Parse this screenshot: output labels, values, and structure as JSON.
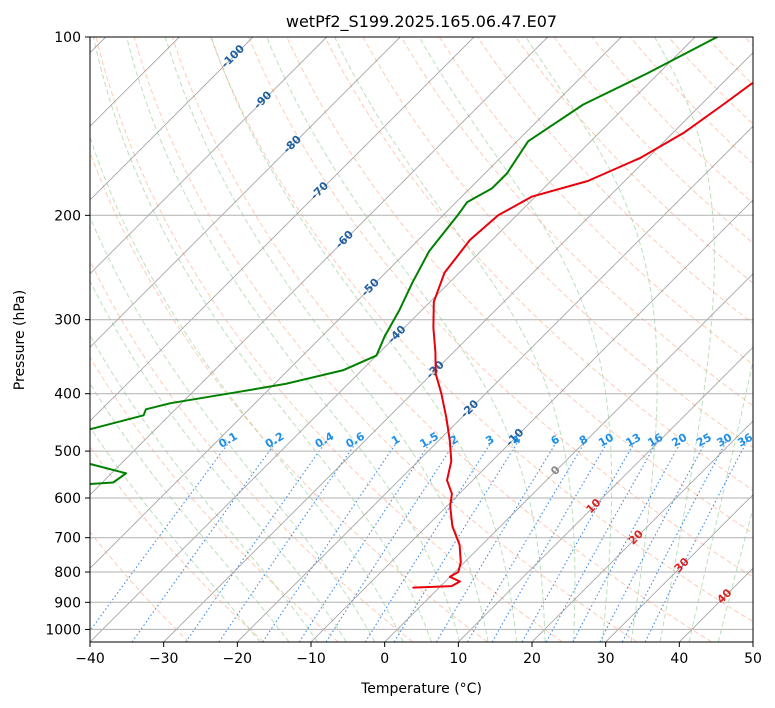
{
  "chart_data": {
    "type": "line",
    "chart_kind": "skew-t log-p diagram",
    "title": "wetPf2_S199.2025.165.06.47.E07",
    "xlabel": "Temperature (°C)",
    "ylabel": "Pressure (hPa)",
    "xlim": [
      -40,
      50
    ],
    "ylim": [
      1050,
      100
    ],
    "y_scale": "log",
    "x_ticks": [
      -40,
      -30,
      -20,
      -10,
      0,
      10,
      20,
      30,
      40,
      50
    ],
    "x_tick_labels": [
      "−40",
      "−30",
      "−20",
      "−10",
      "0",
      "10",
      "20",
      "30",
      "40",
      "50"
    ],
    "y_ticks": [
      100,
      200,
      300,
      400,
      500,
      600,
      700,
      800,
      900,
      1000
    ],
    "y_tick_labels": [
      "100",
      "200",
      "300",
      "400",
      "500",
      "600",
      "700",
      "800",
      "900",
      "1000"
    ],
    "grid": true,
    "colors": {
      "temperature": "#e8000b",
      "dewpoint": "#008000",
      "isotherm": "#888888",
      "dry_adiabat": "#ffa07a",
      "moist_adiabat": "#66bb66",
      "mixing_ratio": "#1f77dd",
      "isotherm_label": "#1f5f9f",
      "mixing_label": "#1f8fe8",
      "moist_label": "#dd2222",
      "grid": "#b0b0b0"
    },
    "series": [
      {
        "role": "temperature",
        "points": [
          [
            -18.5,
            100
          ],
          [
            -22.5,
            110
          ],
          [
            -26.0,
            120
          ],
          [
            -27.0,
            130
          ],
          [
            -28.5,
            145
          ],
          [
            -31.0,
            160
          ],
          [
            -35.0,
            175
          ],
          [
            -40.5,
            186
          ],
          [
            -42.5,
            200
          ],
          [
            -43.0,
            220
          ],
          [
            -42.0,
            250
          ],
          [
            -39.5,
            280
          ],
          [
            -36.0,
            310
          ],
          [
            -32.5,
            340
          ],
          [
            -29.5,
            370
          ],
          [
            -26.0,
            400
          ],
          [
            -22.0,
            440
          ],
          [
            -18.5,
            480
          ],
          [
            -15.5,
            520
          ],
          [
            -13.5,
            560
          ],
          [
            -11.0,
            590
          ],
          [
            -9.5,
            620
          ],
          [
            -6.5,
            670
          ],
          [
            -3.0,
            720
          ],
          [
            -0.5,
            770
          ],
          [
            0.5,
            800
          ],
          [
            0.0,
            815
          ],
          [
            2.0,
            830
          ],
          [
            1.5,
            845
          ],
          [
            -3.5,
            850
          ]
        ]
      },
      {
        "role": "dewpoint",
        "points": [
          [
            -37.0,
            100
          ],
          [
            -41.5,
            115
          ],
          [
            -46.0,
            130
          ],
          [
            -48.5,
            150
          ],
          [
            -47.0,
            170
          ],
          [
            -47.0,
            180
          ],
          [
            -48.5,
            190
          ],
          [
            -48.0,
            200
          ],
          [
            -47.0,
            230
          ],
          [
            -45.0,
            260
          ],
          [
            -43.0,
            290
          ],
          [
            -41.5,
            320
          ],
          [
            -40.0,
            345
          ],
          [
            -42.5,
            365
          ],
          [
            -48.5,
            385
          ],
          [
            -55.0,
            400
          ],
          [
            -61.5,
            415
          ],
          [
            -64.0,
            425
          ],
          [
            -63.5,
            435
          ],
          [
            -69.0,
            460
          ],
          [
            -75.0,
            475
          ],
          [
            -75.5,
            490
          ],
          [
            -80.0,
            505
          ],
          [
            -66.0,
            520
          ],
          [
            -58.0,
            545
          ],
          [
            -58.5,
            565
          ],
          [
            -72.0,
            580
          ],
          [
            -68.0,
            600
          ],
          [
            -63.0,
            630
          ],
          [
            -61.0,
            660
          ],
          [
            -63.0,
            690
          ],
          [
            -74.0,
            710
          ],
          [
            -71.0,
            740
          ],
          [
            -79.0,
            760
          ],
          [
            -78.0,
            785
          ],
          [
            -75.0,
            810
          ],
          [
            -99.0,
            825
          ],
          [
            -96.0,
            845
          ],
          [
            -63.0,
            855
          ]
        ]
      }
    ],
    "isotherm_labels": [
      "-100",
      "-90",
      "-80",
      "-70",
      "-60",
      "-50",
      "-40",
      "-30",
      "-20",
      "-10",
      "0",
      "10",
      "20",
      "30",
      "40"
    ],
    "moist_adiabat_labels": [
      "10",
      "20",
      "30",
      "40"
    ],
    "mixing_ratio_labels": [
      "0.1",
      "0.2",
      "0.4",
      "0.6",
      "1",
      "1.5",
      "2",
      "3",
      "4",
      "6",
      "8",
      "10",
      "13",
      "16",
      "20",
      "25",
      "30",
      "36"
    ],
    "mixing_ratio_values": [
      0.1,
      0.2,
      0.4,
      0.6,
      1,
      1.5,
      2,
      3,
      4,
      6,
      8,
      10,
      13,
      16,
      20,
      25,
      30,
      36
    ]
  }
}
